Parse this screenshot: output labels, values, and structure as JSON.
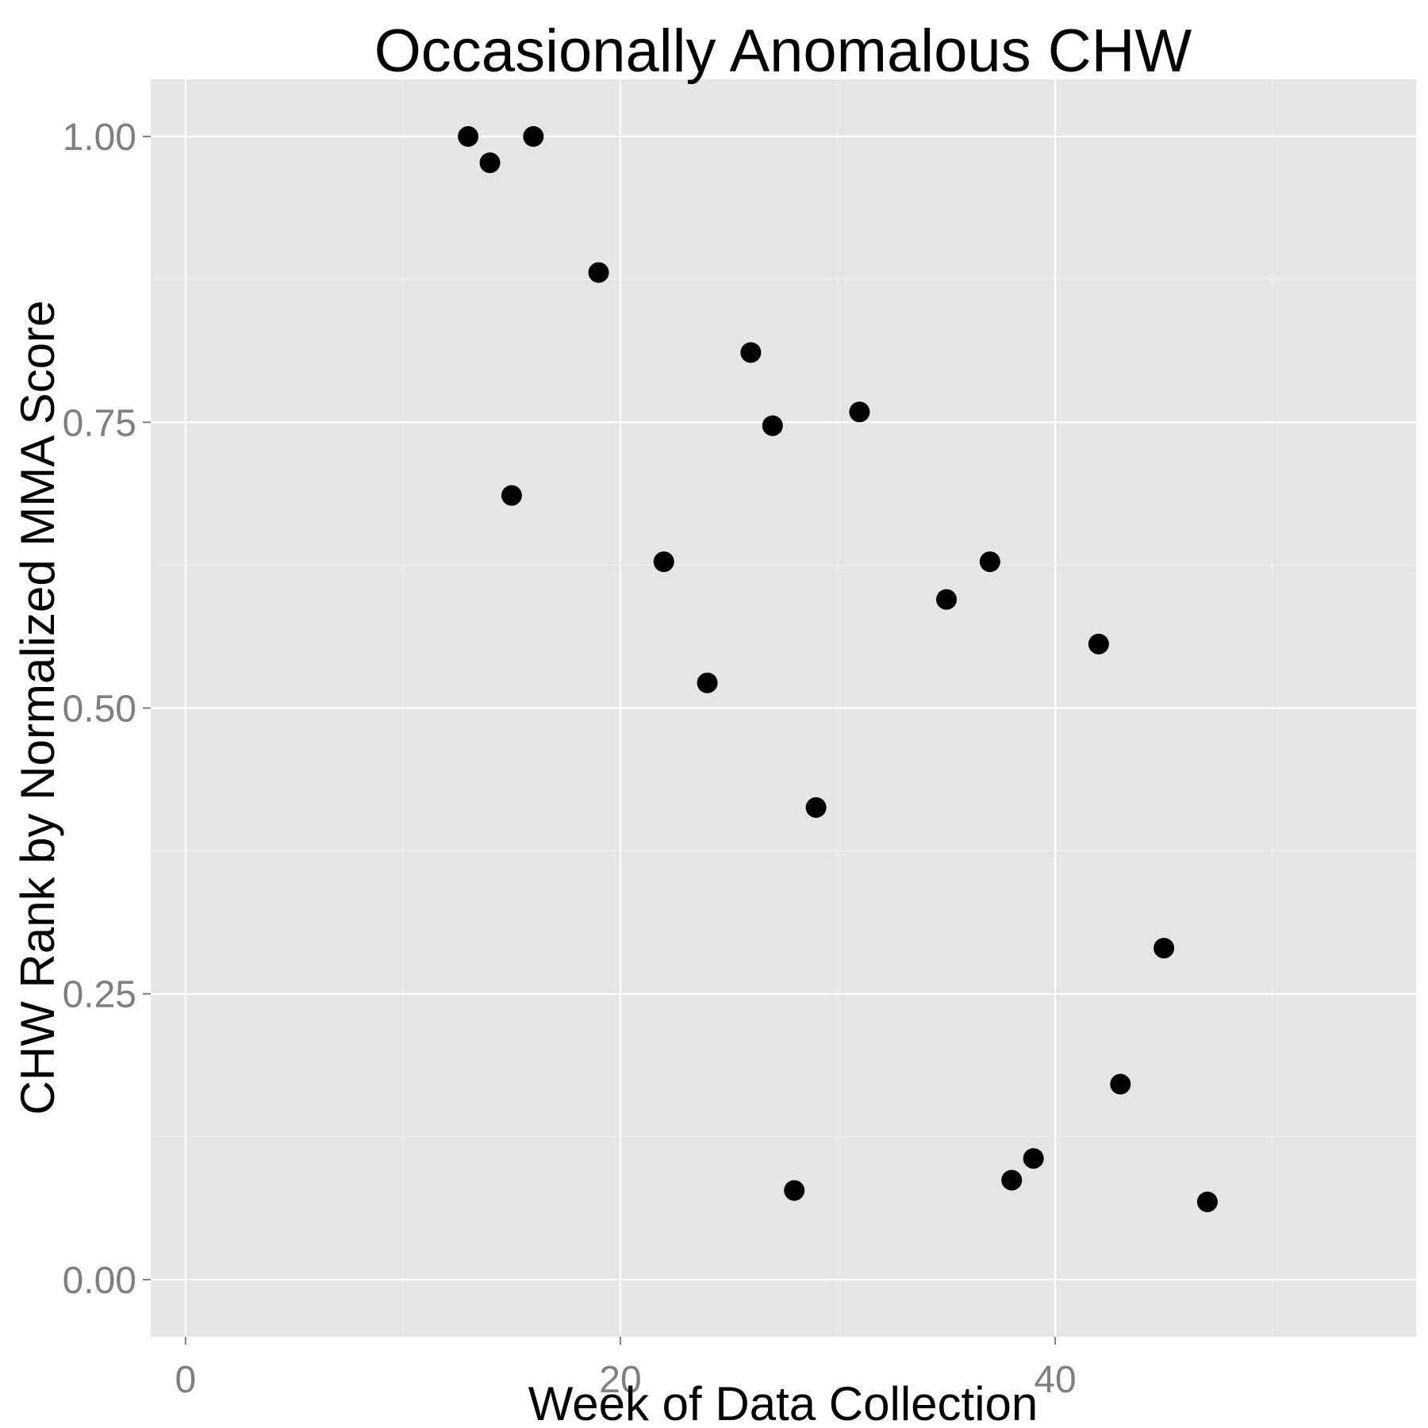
{
  "chart_data": {
    "type": "scatter",
    "title": "Occasionally Anomalous CHW",
    "xlabel": "Week of Data Collection",
    "ylabel": "CHW Rank by Normalized MMA Score",
    "xlim": [
      -1.6,
      56.6
    ],
    "ylim": [
      -0.05,
      1.05
    ],
    "x_ticks": [
      0,
      20,
      40
    ],
    "x_tick_labels": [
      "0",
      "20",
      "40"
    ],
    "x_minor_ticks": [
      10,
      30,
      50
    ],
    "y_ticks": [
      0,
      0.25,
      0.5,
      0.75,
      1.0
    ],
    "y_tick_labels": [
      "0.00",
      "0.25",
      "0.50",
      "0.75",
      "1.00"
    ],
    "y_minor_ticks": [
      0.125,
      0.375,
      0.625,
      0.875
    ],
    "grid": true,
    "points": [
      {
        "x": 13,
        "y": 1.0
      },
      {
        "x": 14,
        "y": 0.977
      },
      {
        "x": 15,
        "y": 0.686
      },
      {
        "x": 16,
        "y": 1.0
      },
      {
        "x": 19,
        "y": 0.881
      },
      {
        "x": 22,
        "y": 0.628
      },
      {
        "x": 24,
        "y": 0.522
      },
      {
        "x": 26,
        "y": 0.811
      },
      {
        "x": 27,
        "y": 0.747
      },
      {
        "x": 28,
        "y": 0.078
      },
      {
        "x": 29,
        "y": 0.413
      },
      {
        "x": 31,
        "y": 0.759
      },
      {
        "x": 35,
        "y": 0.595
      },
      {
        "x": 37,
        "y": 0.628
      },
      {
        "x": 38,
        "y": 0.087
      },
      {
        "x": 39,
        "y": 0.106
      },
      {
        "x": 42,
        "y": 0.556
      },
      {
        "x": 43,
        "y": 0.171
      },
      {
        "x": 45,
        "y": 0.29
      },
      {
        "x": 47,
        "y": 0.068
      }
    ]
  }
}
